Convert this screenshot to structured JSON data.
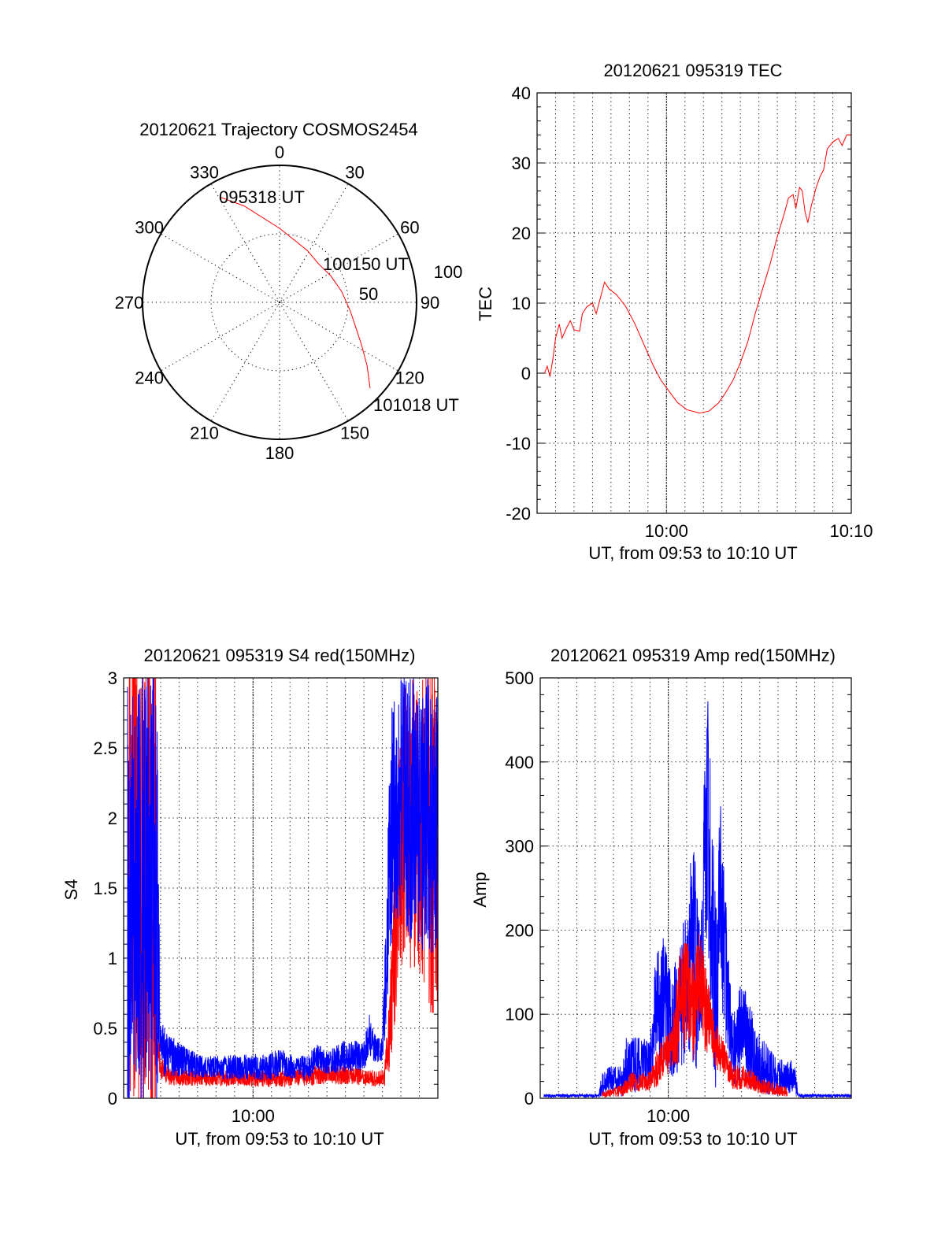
{
  "chart_data": [
    {
      "type": "polar",
      "title": "20120621 Trajectory COSMOS2454",
      "angle_labels": [
        "0",
        "30",
        "60",
        "90",
        "120",
        "150",
        "180",
        "210",
        "240",
        "270",
        "300",
        "330"
      ],
      "angle_values": [
        0,
        30,
        60,
        90,
        120,
        150,
        180,
        210,
        240,
        270,
        300,
        330
      ],
      "radial_labels": [
        "50",
        "100"
      ],
      "rlim": [
        0,
        100
      ],
      "series_color": "#ff0000",
      "trajectory": [
        {
          "az": 330.6,
          "r": 88
        },
        {
          "az": 339.8,
          "r": 75
        },
        {
          "az": 0,
          "r": 54
        },
        {
          "az": 27.9,
          "r": 43
        },
        {
          "az": 45,
          "r": 40
        },
        {
          "az": 62.4,
          "r": 42
        },
        {
          "az": 80,
          "r": 46
        },
        {
          "az": 97,
          "r": 52
        },
        {
          "az": 110,
          "r": 60
        },
        {
          "az": 118,
          "r": 68
        },
        {
          "az": 126,
          "r": 79
        },
        {
          "az": 133.5,
          "r": 91
        }
      ],
      "annotations": [
        "095318 UT",
        "100150 UT",
        "101018 UT"
      ]
    },
    {
      "type": "line",
      "title": "20120621 095319 TEC",
      "xlabel": "UT, from 09:53 to 10:10 UT",
      "ylabel": "TEC",
      "xlim_minutes_from_0953": [
        0,
        17
      ],
      "x_tick_labels": [
        {
          "label": "10:00",
          "x": 7
        },
        {
          "label": "10:10",
          "x": 17
        }
      ],
      "ylim": [
        -20,
        40
      ],
      "y_tick_labels": [
        "-20",
        "-10",
        "0",
        "10",
        "20",
        "30",
        "40"
      ],
      "y_ticks": [
        -20,
        -10,
        0,
        10,
        20,
        30,
        40
      ],
      "y_minor_step": 2,
      "grid": true,
      "series": [
        {
          "name": "TEC",
          "color": "#ff0000",
          "points": [
            [
              0.4,
              0
            ],
            [
              0.55,
              1
            ],
            [
              0.7,
              -0.5
            ],
            [
              0.85,
              2
            ],
            [
              1.0,
              5
            ],
            [
              1.2,
              7
            ],
            [
              1.35,
              5
            ],
            [
              1.6,
              6.5
            ],
            [
              1.8,
              7.5
            ],
            [
              2.0,
              6.2
            ],
            [
              2.3,
              6
            ],
            [
              2.45,
              8.5
            ],
            [
              2.7,
              9.5
            ],
            [
              3.0,
              10
            ],
            [
              3.2,
              8.5
            ],
            [
              3.45,
              11
            ],
            [
              3.65,
              13
            ],
            [
              3.9,
              12
            ],
            [
              4.3,
              11.2
            ],
            [
              4.8,
              9.5
            ],
            [
              5.3,
              7
            ],
            [
              5.8,
              4
            ],
            [
              6.3,
              1
            ],
            [
              6.7,
              -1
            ],
            [
              7.2,
              -2.8
            ],
            [
              7.6,
              -4.2
            ],
            [
              8.1,
              -5.2
            ],
            [
              8.8,
              -5.7
            ],
            [
              9.3,
              -5.4
            ],
            [
              9.8,
              -4.3
            ],
            [
              10.2,
              -2.8
            ],
            [
              10.6,
              -1
            ],
            [
              11.0,
              1.5
            ],
            [
              11.4,
              4.5
            ],
            [
              11.8,
              8.5
            ],
            [
              12.2,
              12
            ],
            [
              12.6,
              15.5
            ],
            [
              13.0,
              19.5
            ],
            [
              13.4,
              23
            ],
            [
              13.6,
              25
            ],
            [
              13.85,
              25.5
            ],
            [
              14.0,
              23.5
            ],
            [
              14.2,
              26.5
            ],
            [
              14.35,
              26
            ],
            [
              14.5,
              23
            ],
            [
              14.65,
              21.5
            ],
            [
              14.85,
              24
            ],
            [
              15.1,
              26.5
            ],
            [
              15.3,
              28
            ],
            [
              15.5,
              29
            ],
            [
              15.7,
              32
            ],
            [
              16.0,
              33
            ],
            [
              16.3,
              33.5
            ],
            [
              16.5,
              32.5
            ],
            [
              16.75,
              34
            ],
            [
              17.0,
              34
            ]
          ]
        }
      ]
    },
    {
      "type": "line",
      "title": "20120621 095319 S4 red(150MHz)",
      "xlabel": "UT, from 09:53 to 10:10 UT",
      "ylabel": "S4",
      "xlim_minutes_from_0953": [
        0,
        17
      ],
      "x_tick_labels": [
        {
          "label": "10:00",
          "x": 7
        }
      ],
      "ylim": [
        0,
        3
      ],
      "y_tick_labels": [
        "0",
        "0.5",
        "1",
        "1.5",
        "2",
        "2.5",
        "3"
      ],
      "y_ticks": [
        0,
        0.5,
        1,
        1.5,
        2,
        2.5,
        3
      ],
      "y_minor_step": 0.1,
      "grid": true,
      "series": [
        {
          "name": "blue",
          "color": "#0000ff",
          "envelope_t_mean_spread": [
            [
              0.2,
              1.5,
              1.6
            ],
            [
              1.85,
              1.5,
              1.6
            ],
            [
              1.9,
              0.9,
              0.6
            ],
            [
              2.0,
              0.35,
              0.2
            ],
            [
              2.5,
              0.3,
              0.15
            ],
            [
              3.5,
              0.25,
              0.1
            ],
            [
              4.5,
              0.22,
              0.08
            ],
            [
              6,
              0.22,
              0.09
            ],
            [
              7.5,
              0.22,
              0.1
            ],
            [
              8.5,
              0.25,
              0.1
            ],
            [
              9.5,
              0.22,
              0.08
            ],
            [
              10,
              0.22,
              0.1
            ],
            [
              10.5,
              0.3,
              0.1
            ],
            [
              11,
              0.25,
              0.08
            ],
            [
              12,
              0.3,
              0.12
            ],
            [
              13,
              0.3,
              0.1
            ],
            [
              13.3,
              0.45,
              0.15
            ],
            [
              13.6,
              0.35,
              0.1
            ],
            [
              14.0,
              0.35,
              0.08
            ],
            [
              14.2,
              1.0,
              0.5
            ],
            [
              14.5,
              2.0,
              0.9
            ],
            [
              15,
              2.2,
              0.9
            ],
            [
              16,
              2.0,
              1.0
            ],
            [
              17,
              2.0,
              1.0
            ]
          ]
        },
        {
          "name": "red",
          "color": "#ff0000",
          "envelope_t_mean_spread": [
            [
              0.3,
              1.6,
              1.7
            ],
            [
              1.75,
              1.6,
              1.7
            ],
            [
              1.8,
              0.4,
              0.15
            ],
            [
              2.0,
              0.22,
              0.08
            ],
            [
              2.5,
              0.15,
              0.06
            ],
            [
              8,
              0.14,
              0.06
            ],
            [
              12,
              0.18,
              0.08
            ],
            [
              13,
              0.15,
              0.06
            ],
            [
              14.1,
              0.14,
              0.06
            ],
            [
              14.4,
              0.5,
              0.3
            ],
            [
              14.8,
              1.5,
              0.8
            ],
            [
              15.2,
              2.0,
              1.0
            ],
            [
              17,
              1.8,
              1.3
            ]
          ]
        }
      ]
    },
    {
      "type": "line",
      "title": "20120621 095319 Amp red(150MHz)",
      "xlabel": "UT, from 09:53 to 10:10 UT",
      "ylabel": "Amp",
      "xlim_minutes_from_0953": [
        0,
        17
      ],
      "x_tick_labels": [
        {
          "label": "10:00",
          "x": 7
        }
      ],
      "ylim": [
        0,
        500
      ],
      "y_tick_labels": [
        "0",
        "100",
        "200",
        "300",
        "400",
        "500"
      ],
      "y_ticks": [
        0,
        100,
        200,
        300,
        400,
        500
      ],
      "y_minor_step": 20,
      "grid": true,
      "series": [
        {
          "name": "blue",
          "color": "#0000ff",
          "envelope_t_mean_spread": [
            [
              0.2,
              3,
              2
            ],
            [
              3.2,
              3,
              2
            ],
            [
              3.4,
              20,
              18
            ],
            [
              4.5,
              20,
              18
            ],
            [
              4.7,
              40,
              35
            ],
            [
              6.0,
              40,
              30
            ],
            [
              6.3,
              100,
              70
            ],
            [
              6.8,
              120,
              80
            ],
            [
              7.2,
              80,
              60
            ],
            [
              7.6,
              110,
              80
            ],
            [
              8.1,
              150,
              100
            ],
            [
              8.4,
              180,
              150
            ],
            [
              8.7,
              120,
              90
            ],
            [
              9.0,
              250,
              160
            ],
            [
              9.15,
              330,
              160
            ],
            [
              9.4,
              200,
              150
            ],
            [
              9.6,
              120,
              110
            ],
            [
              9.85,
              250,
              110
            ],
            [
              10.1,
              150,
              100
            ],
            [
              10.5,
              60,
              45
            ],
            [
              11,
              80,
              60
            ],
            [
              11.5,
              60,
              50
            ],
            [
              12,
              40,
              35
            ],
            [
              13,
              25,
              22
            ],
            [
              13.9,
              25,
              20
            ],
            [
              14.1,
              3,
              2
            ],
            [
              17,
              3,
              2
            ]
          ]
        },
        {
          "name": "red",
          "color": "#ff0000",
          "envelope_t_mean_spread": [
            [
              3.4,
              4,
              3
            ],
            [
              4.5,
              10,
              8
            ],
            [
              5,
              20,
              12
            ],
            [
              6,
              20,
              12
            ],
            [
              6.5,
              40,
              25
            ],
            [
              7.2,
              60,
              25
            ],
            [
              7.6,
              110,
              70
            ],
            [
              8.1,
              130,
              60
            ],
            [
              8.4,
              100,
              60
            ],
            [
              8.7,
              150,
              50
            ],
            [
              9.0,
              110,
              60
            ],
            [
              9.3,
              90,
              30
            ],
            [
              9.6,
              60,
              30
            ],
            [
              10,
              50,
              20
            ],
            [
              10.5,
              25,
              15
            ],
            [
              11.3,
              25,
              15
            ],
            [
              12,
              15,
              10
            ],
            [
              13.5,
              8,
              6
            ]
          ]
        }
      ]
    }
  ]
}
